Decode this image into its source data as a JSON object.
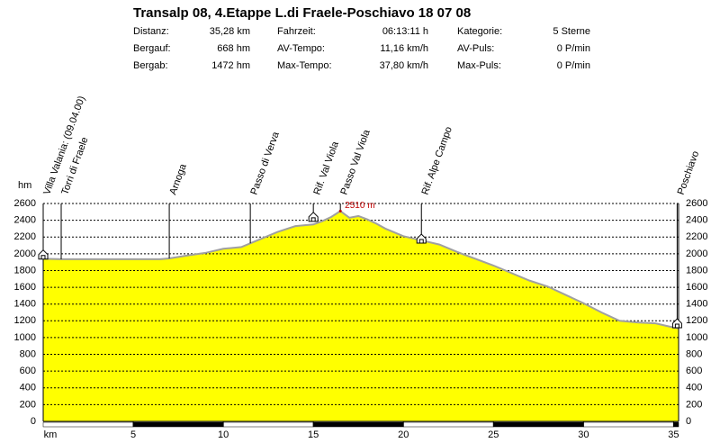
{
  "chart_data": {
    "type": "area",
    "title": "Transalp 08, 4.Etappe L.di Fraele-Poschiavo 18 07 08",
    "stats": [
      [
        {
          "label": "Distanz:",
          "value": "35,28 km"
        },
        {
          "label": "Fahrzeit:",
          "value": "06:13:11 h"
        },
        {
          "label": "Kategorie:",
          "value": "5 Sterne"
        }
      ],
      [
        {
          "label": "Bergauf:",
          "value": "668 hm"
        },
        {
          "label": "AV-Tempo:",
          "value": "11,16 km/h"
        },
        {
          "label": "AV-Puls:",
          "value": "0 P/min"
        }
      ],
      [
        {
          "label": "Bergab:",
          "value": "1472 hm"
        },
        {
          "label": "Max-Tempo:",
          "value": "37,80 km/h"
        },
        {
          "label": "Max-Puls:",
          "value": "0 P/min"
        }
      ]
    ],
    "x_label": "km",
    "y_label": "hm",
    "x": [
      0,
      1,
      3,
      6.5,
      7,
      8,
      9,
      10,
      11,
      12,
      13,
      14,
      15,
      15.5,
      16,
      16.5,
      17,
      17.5,
      18,
      18.5,
      19,
      20,
      21,
      22,
      23,
      24,
      25,
      26,
      27,
      28,
      29,
      30,
      31,
      32,
      33,
      34,
      35,
      35.28
    ],
    "values": [
      1940,
      1935,
      1935,
      1935,
      1945,
      1980,
      2010,
      2060,
      2080,
      2170,
      2260,
      2330,
      2350,
      2390,
      2440,
      2510,
      2430,
      2450,
      2410,
      2360,
      2300,
      2210,
      2160,
      2110,
      2020,
      1940,
      1860,
      1770,
      1680,
      1610,
      1510,
      1410,
      1300,
      1200,
      1180,
      1170,
      1120,
      1110
    ],
    "fill_color": "#ffff00",
    "line_color": "#a0a0a0",
    "peak": {
      "x": 16.5,
      "value": 2510,
      "label": "2510 m"
    },
    "waypoints": [
      {
        "name": "Villa Valania: (09.04.00)",
        "x": 0,
        "hut_elevation": 1980
      },
      {
        "name": "Torri di Fraele",
        "x": 1
      },
      {
        "name": "Arnoga",
        "x": 7
      },
      {
        "name": "Passo di Verva",
        "x": 11.5
      },
      {
        "name": "Rif. Val Viola",
        "x": 15,
        "hut_elevation": 2430
      },
      {
        "name": "Passo Val Viola",
        "x": 16.5
      },
      {
        "name": "Rif. Alpe Campo",
        "x": 21,
        "hut_elevation": 2170
      },
      {
        "name": "Poschiavo",
        "x": 35.2,
        "hut_elevation": 1160
      }
    ],
    "xlim": [
      0,
      35.28
    ],
    "ylim": [
      0,
      2600
    ],
    "xticks": [
      5,
      10,
      15,
      20,
      25,
      30,
      35
    ],
    "yticks": [
      0,
      200,
      400,
      600,
      800,
      1000,
      1200,
      1400,
      1600,
      1800,
      2000,
      2200,
      2400,
      2600
    ],
    "grid": true
  }
}
